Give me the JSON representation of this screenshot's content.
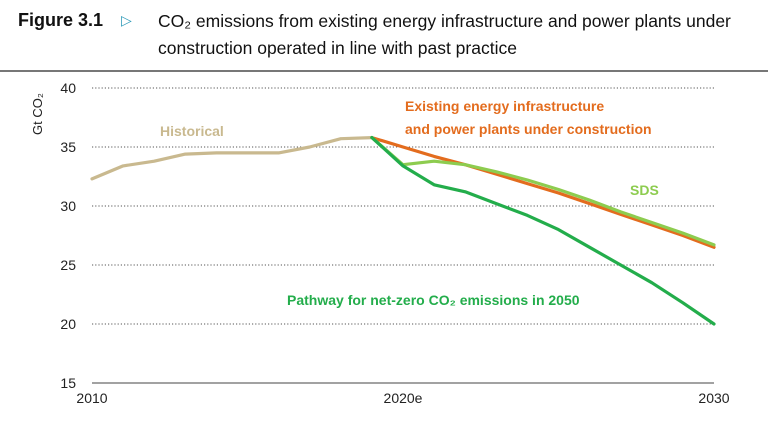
{
  "figure": {
    "label": "Figure 3.1",
    "title": "CO₂ emissions from existing energy infrastructure and power plants under construction operated in line with past practice"
  },
  "colors": {
    "historical": "#c9b98f",
    "existing": "#e36c1e",
    "sds": "#8dcc4f",
    "netzero": "#23ad4b",
    "arrow": "#2e9ab8"
  },
  "chart_data": {
    "type": "line",
    "ylabel": "Gt CO₂",
    "xlabel": "",
    "ylim": [
      15,
      40
    ],
    "xlim": [
      2010,
      2030
    ],
    "yticks": [
      15,
      20,
      25,
      30,
      35,
      40
    ],
    "xticks": [
      {
        "value": 2010,
        "label": "2010"
      },
      {
        "value": 2020,
        "label": "2020e"
      },
      {
        "value": 2030,
        "label": "2030"
      }
    ],
    "grid": "dotted-horizontal",
    "series": [
      {
        "name": "Historical",
        "color_key": "historical",
        "x": [
          2010,
          2011,
          2012,
          2013,
          2014,
          2015,
          2016,
          2017,
          2018,
          2019
        ],
        "y": [
          32.3,
          33.4,
          33.8,
          34.4,
          34.5,
          34.5,
          34.5,
          35.0,
          35.7,
          35.8
        ]
      },
      {
        "name": "Existing energy infrastructure and power plants under construction",
        "name_lines": [
          "Existing energy infrastructure",
          "and power plants under construction"
        ],
        "color_key": "existing",
        "x": [
          2019,
          2020,
          2021,
          2022,
          2023,
          2024,
          2025,
          2026,
          2027,
          2028,
          2029,
          2030
        ],
        "y": [
          35.8,
          35.0,
          34.2,
          33.5,
          32.7,
          31.9,
          31.1,
          30.2,
          29.3,
          28.4,
          27.5,
          26.5
        ]
      },
      {
        "name": "SDS",
        "color_key": "sds",
        "x": [
          2019,
          2020,
          2021,
          2022,
          2023,
          2024,
          2025,
          2026,
          2027,
          2028,
          2029,
          2030
        ],
        "y": [
          35.8,
          33.5,
          33.8,
          33.5,
          32.9,
          32.2,
          31.4,
          30.5,
          29.5,
          28.6,
          27.7,
          26.7
        ]
      },
      {
        "name": "Pathway for net-zero CO₂ emissions in 2050",
        "color_key": "netzero",
        "x": [
          2019,
          2020,
          2021,
          2022,
          2023,
          2024,
          2025,
          2026,
          2027,
          2028,
          2029,
          2030
        ],
        "y": [
          35.8,
          33.4,
          31.8,
          31.2,
          30.2,
          29.2,
          28.0,
          26.5,
          25.0,
          23.5,
          21.8,
          20.0
        ]
      }
    ]
  }
}
